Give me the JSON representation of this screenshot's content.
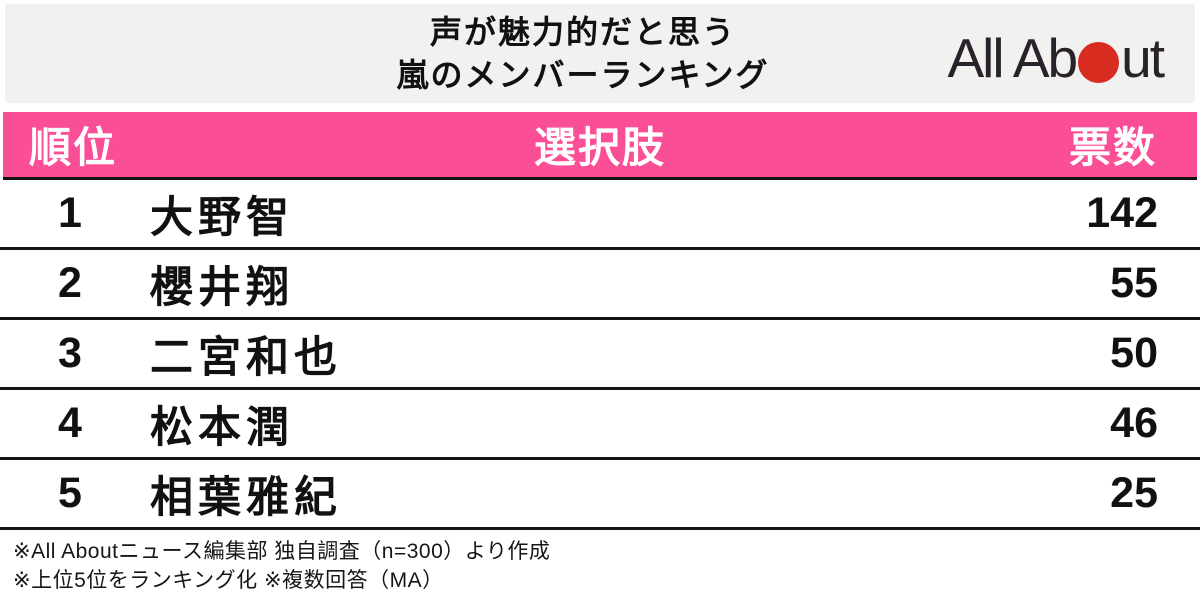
{
  "title": {
    "line1": "声が魅力的だと思う",
    "line2": "嵐のメンバーランキング"
  },
  "logo": {
    "text_before_dot": "All Ab",
    "text_after_dot": "ut",
    "dot_color": "#d92c20"
  },
  "table": {
    "headers": {
      "rank": "順位",
      "choice": "選択肢",
      "votes": "票数"
    },
    "rows": [
      {
        "rank": "1",
        "name": "大野智",
        "votes": "142"
      },
      {
        "rank": "2",
        "name": "櫻井翔",
        "votes": "55"
      },
      {
        "rank": "3",
        "name": "二宮和也",
        "votes": "50"
      },
      {
        "rank": "4",
        "name": "松本潤",
        "votes": "46"
      },
      {
        "rank": "5",
        "name": "相葉雅紀",
        "votes": "25"
      }
    ]
  },
  "footer": {
    "line1": "※All Aboutニュース編集部 独自調査（n=300）より作成",
    "line2": "※上位5位をランキング化 ※複数回答（MA）"
  },
  "colors": {
    "accent_pink": "#fa4f97",
    "logo_red": "#d92c20",
    "title_background": "#f1f1f0",
    "row_border": "#141414"
  },
  "chart_data": {
    "type": "table",
    "title": "声が魅力的だと思う嵐のメンバーランキング",
    "columns": [
      "順位",
      "選択肢",
      "票数"
    ],
    "rows": [
      [
        "1",
        "大野智",
        142
      ],
      [
        "2",
        "櫻井翔",
        55
      ],
      [
        "3",
        "二宮和也",
        50
      ],
      [
        "4",
        "松本潤",
        46
      ],
      [
        "5",
        "相葉雅紀",
        25
      ]
    ],
    "notes": [
      "※All Aboutニュース編集部 独自調査（n=300）より作成",
      "※上位5位をランキング化 ※複数回答（MA）"
    ],
    "source": "All About"
  }
}
